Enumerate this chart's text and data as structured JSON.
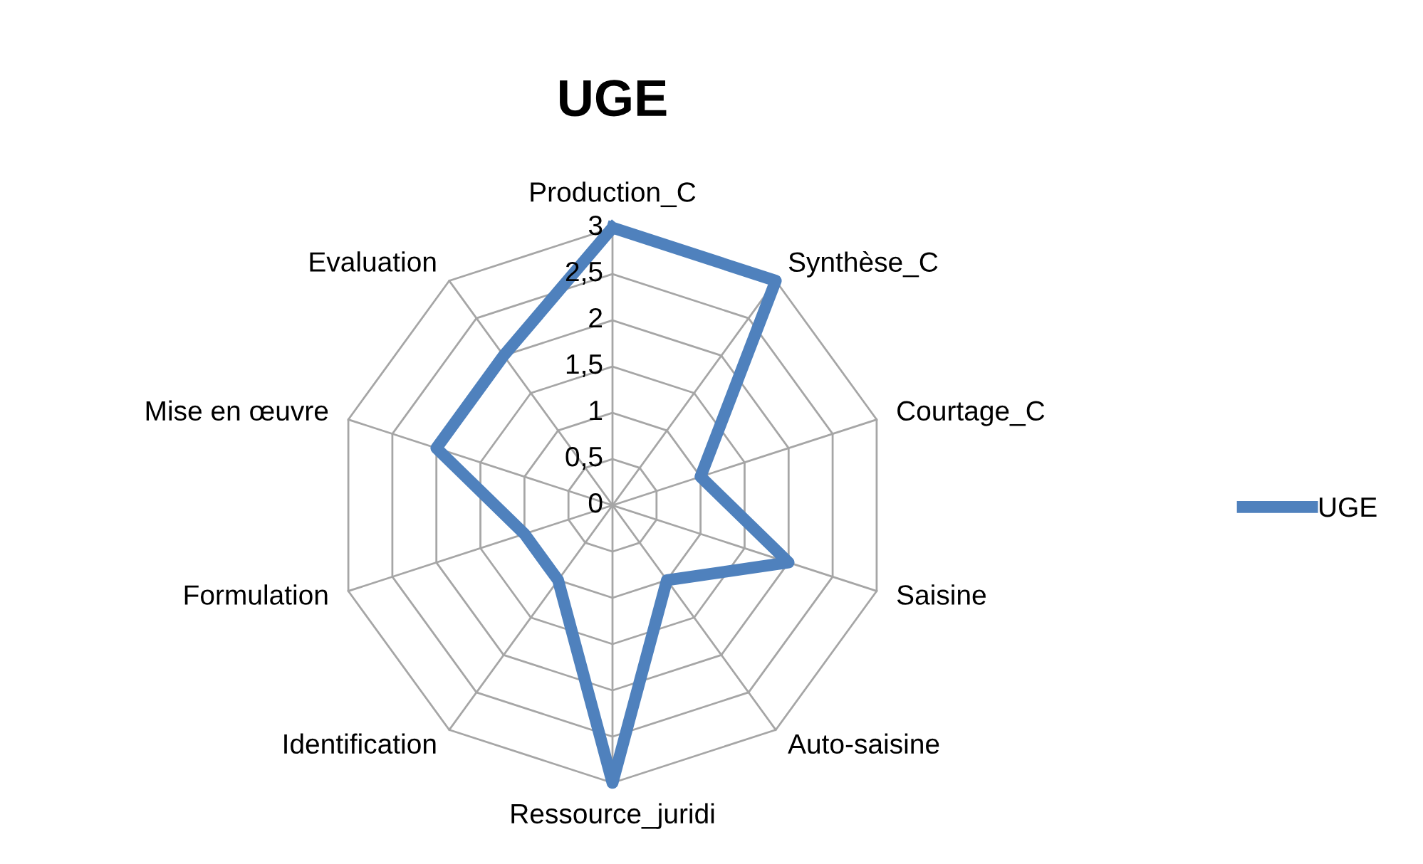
{
  "chart_data": {
    "type": "radar",
    "title": "UGE",
    "categories": [
      "Production_C",
      "Synthèse_C",
      "Courtage_C",
      "Saisine",
      "Auto-saisine",
      "Ressource_juridi",
      "Identification",
      "Formulation",
      "Mise en œuvre",
      "Evaluation"
    ],
    "series": [
      {
        "name": "UGE",
        "color": "#4f81bd",
        "values": [
          3,
          3,
          1,
          2,
          1,
          3,
          1,
          1,
          2,
          2
        ]
      }
    ],
    "ylim": [
      0,
      3
    ],
    "yticks": [
      0,
      {
        "value": 0.5,
        "label": "0,5"
      },
      1,
      {
        "value": 1.5,
        "label": "1,5"
      },
      2,
      {
        "value": 2.5,
        "label": "2,5"
      },
      3
    ],
    "grid": true,
    "legend": "right"
  }
}
